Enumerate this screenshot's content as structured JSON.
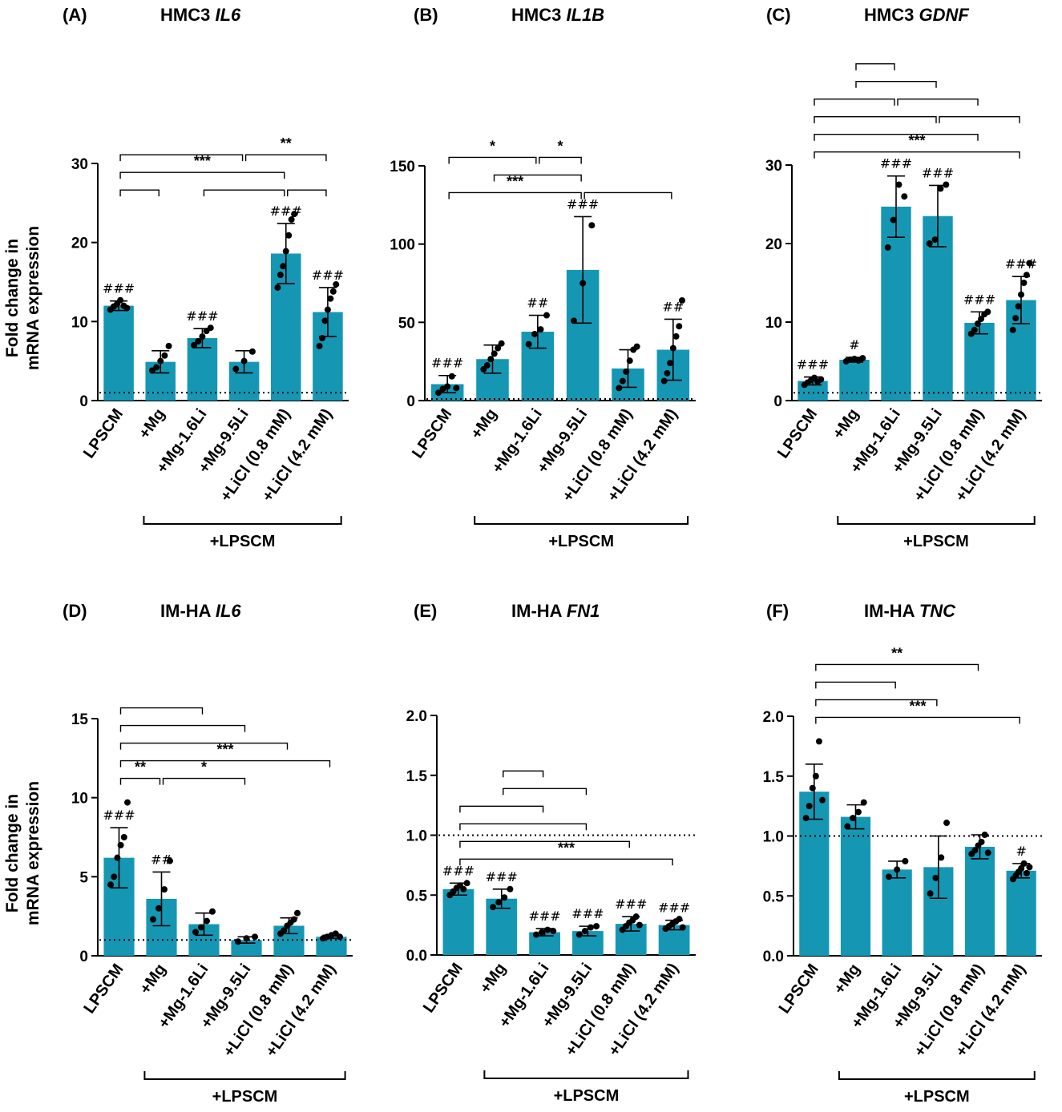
{
  "figure": {
    "y_axis_label_line1": "Fold change in",
    "y_axis_label_line2": "mRNA expression",
    "group_label": "+LPSCM"
  },
  "chart_data": [
    {
      "type": "bar",
      "panel": "(A)",
      "title_prefix": "HMC3",
      "gene": "IL6",
      "categories": [
        "LPSCM",
        "+Mg",
        "+Mg-1.6Li",
        "+Mg-9.5Li",
        "+LiCl (0.8 mM)",
        "+LiCl (4.2 mM)"
      ],
      "values": [
        12.0,
        4.9,
        7.9,
        4.9,
        18.6,
        11.2
      ],
      "error": [
        0.6,
        1.4,
        1.2,
        1.4,
        3.8,
        3.1
      ],
      "points": [
        [
          11.5,
          11.9,
          12.2,
          12.7,
          12.0,
          11.7
        ],
        [
          3.8,
          4.2,
          5.0,
          5.7,
          6.9
        ],
        [
          7.0,
          7.5,
          8.1,
          8.8,
          9.2
        ],
        [
          4.0,
          5.0,
          6.2
        ],
        [
          14.3,
          15.9,
          17.0,
          18.9,
          20.9,
          22.9,
          23.6
        ],
        [
          6.9,
          7.9,
          10.1,
          11.5,
          12.9,
          13.8,
          14.7
        ]
      ],
      "hash_labels": [
        "###",
        "",
        "###",
        "",
        "###",
        "###"
      ],
      "ylim": [
        0,
        30
      ],
      "yticks": [
        0,
        10,
        20,
        30
      ],
      "ref_line": 1.0,
      "brackets": [
        [
          0,
          1
        ],
        [
          0,
          4
        ],
        [
          0,
          3
        ],
        [
          2,
          4
        ],
        [
          4,
          5
        ],
        [
          3,
          5
        ]
      ],
      "stars": [
        {
          "text": "***",
          "from": 0,
          "to": 4
        },
        {
          "text": "**",
          "from": 3,
          "to": 5
        }
      ]
    },
    {
      "type": "bar",
      "panel": "(B)",
      "title_prefix": "HMC3",
      "gene": "IL1B",
      "categories": [
        "LPSCM",
        "+Mg",
        "+Mg-1.6Li",
        "+Mg-9.5Li",
        "+LiCl (0.8 mM)",
        "+LiCl (4.2 mM)"
      ],
      "values": [
        10.5,
        26.5,
        44.0,
        83.5,
        20.5,
        32.5
      ],
      "error": [
        5.5,
        9.0,
        10.5,
        34.0,
        12.0,
        19.5
      ],
      "points": [
        [
          5.0,
          7.5,
          9.0,
          15.5,
          8.0
        ],
        [
          20.0,
          22.5,
          26.5,
          30.0,
          33.5,
          36.5
        ],
        [
          36.0,
          42.5,
          45.5,
          54.5
        ],
        [
          51.0,
          75.0,
          112.0
        ],
        [
          8.0,
          12.5,
          18.5,
          25.5,
          32.5,
          34.5
        ],
        [
          12.5,
          17.5,
          24.0,
          33.5,
          41.0,
          47.5,
          64.0
        ]
      ],
      "hash_labels": [
        "###",
        "",
        "##",
        "###",
        "",
        "##"
      ],
      "ylim": [
        0,
        150
      ],
      "yticks": [
        0,
        50,
        100,
        150
      ],
      "ref_line": 1.0,
      "brackets": [
        [
          0,
          3
        ],
        [
          1,
          3
        ],
        [
          3,
          5
        ],
        [
          2,
          3
        ],
        [
          0,
          2
        ]
      ],
      "stars": [
        {
          "text": "***",
          "from": 0,
          "to": 3
        },
        {
          "text": "*",
          "from": 2,
          "to": 3
        },
        {
          "text": "*",
          "from": 0,
          "to": 2
        }
      ]
    },
    {
      "type": "bar",
      "panel": "(C)",
      "title_prefix": "HMC3",
      "gene": "GDNF",
      "categories": [
        "LPSCM",
        "+Mg",
        "+Mg-1.6Li",
        "+Mg-9.5Li",
        "+LiCl (0.8 mM)",
        "+LiCl (4.2 mM)"
      ],
      "values": [
        2.5,
        5.2,
        24.7,
        23.5,
        9.9,
        12.8
      ],
      "error": [
        0.5,
        0.3,
        3.9,
        3.9,
        1.4,
        3.0
      ],
      "points": [
        [
          2.0,
          2.3,
          2.6,
          2.9,
          2.4,
          2.7
        ],
        [
          5.0,
          5.2,
          5.3,
          5.1,
          5.4
        ],
        [
          19.5,
          23.0,
          27.5,
          26.0
        ],
        [
          20.0,
          20.5,
          27.0,
          27.5
        ],
        [
          8.5,
          9.0,
          9.8,
          10.4,
          11.0,
          11.3
        ],
        [
          9.0,
          10.5,
          12.0,
          13.5,
          15.0,
          16.0,
          17.5
        ]
      ],
      "hash_labels": [
        "###",
        "#",
        "###",
        "###",
        "###",
        "###"
      ],
      "ylim": [
        0,
        30
      ],
      "yticks": [
        0,
        10,
        20,
        30
      ],
      "ref_line": 1.0,
      "brackets": [
        [
          0,
          5
        ],
        [
          0,
          4
        ],
        [
          0,
          3
        ],
        [
          3,
          5
        ],
        [
          0,
          2
        ],
        [
          2,
          4
        ],
        [
          1,
          3
        ],
        [
          1,
          2
        ]
      ],
      "stars": [
        {
          "text": "***",
          "from": 0,
          "to": 5
        }
      ]
    },
    {
      "type": "bar",
      "panel": "(D)",
      "title_prefix": "IM-HA",
      "gene": "IL6",
      "categories": [
        "LPSCM",
        "+Mg",
        "+Mg-1.6Li",
        "+Mg-9.5Li",
        "+LiCl (0.8 mM)",
        "+LiCl (4.2 mM)"
      ],
      "values": [
        6.2,
        3.6,
        2.0,
        1.0,
        1.9,
        1.2
      ],
      "error": [
        1.9,
        1.7,
        0.7,
        0.2,
        0.5,
        0.1
      ],
      "points": [
        [
          4.5,
          5.0,
          6.2,
          7.0,
          7.5,
          9.7
        ],
        [
          2.3,
          3.0,
          4.2,
          6.0
        ],
        [
          1.5,
          1.8,
          2.2,
          2.8
        ],
        [
          0.9,
          1.1,
          1.2
        ],
        [
          1.4,
          1.6,
          1.9,
          2.1,
          2.3,
          2.7
        ],
        [
          1.1,
          1.2,
          1.3,
          1.4,
          1.2
        ]
      ],
      "hash_labels": [
        "###",
        "##",
        "",
        "",
        "",
        ""
      ],
      "ylim": [
        0,
        15
      ],
      "yticks": [
        0,
        5,
        10,
        15
      ],
      "ref_line": 1.0,
      "brackets": [
        [
          0,
          1
        ],
        [
          1,
          3
        ],
        [
          0,
          5
        ],
        [
          0,
          4
        ],
        [
          0,
          3
        ],
        [
          0,
          2
        ]
      ],
      "stars": [
        {
          "text": "**",
          "from": 0,
          "to": 1
        },
        {
          "text": "*",
          "from": 1,
          "to": 3
        },
        {
          "text": "***",
          "from": 0,
          "to": 5
        }
      ]
    },
    {
      "type": "bar",
      "panel": "(E)",
      "title_prefix": "IM-HA",
      "gene": "FN1",
      "categories": [
        "LPSCM",
        "+Mg",
        "+Mg-1.6Li",
        "+Mg-9.5Li",
        "+LiCl (0.8 mM)",
        "+LiCl (4.2 mM)"
      ],
      "values": [
        0.55,
        0.47,
        0.19,
        0.2,
        0.26,
        0.25
      ],
      "error": [
        0.05,
        0.08,
        0.03,
        0.04,
        0.06,
        0.04
      ],
      "points": [
        [
          0.5,
          0.53,
          0.56,
          0.58,
          0.55,
          0.6
        ],
        [
          0.4,
          0.44,
          0.48,
          0.55
        ],
        [
          0.17,
          0.19,
          0.21,
          0.2
        ],
        [
          0.17,
          0.2,
          0.23,
          0.24
        ],
        [
          0.21,
          0.24,
          0.27,
          0.29,
          0.32,
          0.25
        ],
        [
          0.22,
          0.24,
          0.26,
          0.28,
          0.3,
          0.23
        ]
      ],
      "hash_labels": [
        "###",
        "###",
        "###",
        "###",
        "###",
        "###"
      ],
      "ylim": [
        0,
        2.0
      ],
      "yticks": [
        0.0,
        0.5,
        1.0,
        1.5,
        2.0
      ],
      "ref_line": 1.0,
      "brackets": [
        [
          0,
          5
        ],
        [
          0,
          4
        ],
        [
          0,
          3
        ],
        [
          0,
          2
        ],
        [
          1,
          3
        ],
        [
          1,
          2
        ]
      ],
      "stars": [
        {
          "text": "***",
          "from": 0,
          "to": 5
        }
      ]
    },
    {
      "type": "bar",
      "panel": "(F)",
      "title_prefix": "IM-HA",
      "gene": "TNC",
      "categories": [
        "LPSCM",
        "+Mg",
        "+Mg-1.6Li",
        "+Mg-9.5Li",
        "+LiCl (0.8 mM)",
        "+LiCl (4.2 mM)"
      ],
      "values": [
        1.37,
        1.16,
        0.72,
        0.74,
        0.91,
        0.71
      ],
      "error": [
        0.23,
        0.1,
        0.07,
        0.26,
        0.1,
        0.06
      ],
      "points": [
        [
          1.15,
          1.25,
          1.4,
          1.5,
          1.79,
          1.3
        ],
        [
          1.08,
          1.15,
          1.2,
          1.28
        ],
        [
          0.66,
          0.72,
          0.79
        ],
        [
          0.52,
          0.65,
          0.82,
          1.11
        ],
        [
          0.85,
          0.88,
          0.92,
          0.95,
          1.01,
          0.86
        ],
        [
          0.64,
          0.67,
          0.7,
          0.73,
          0.77,
          0.69,
          0.74
        ]
      ],
      "hash_labels": [
        "",
        "",
        "",
        "",
        "",
        "#"
      ],
      "ylim": [
        0,
        2.0
      ],
      "yticks": [
        0.0,
        0.5,
        1.0,
        1.5,
        2.0
      ],
      "ref_line": 1.0,
      "brackets": [
        [
          0,
          5
        ],
        [
          0,
          3
        ],
        [
          0,
          2
        ],
        [
          0,
          4
        ]
      ],
      "stars": [
        {
          "text": "***",
          "from": 0,
          "to": 5
        },
        {
          "text": "**",
          "from": 0,
          "to": 4
        }
      ]
    }
  ]
}
